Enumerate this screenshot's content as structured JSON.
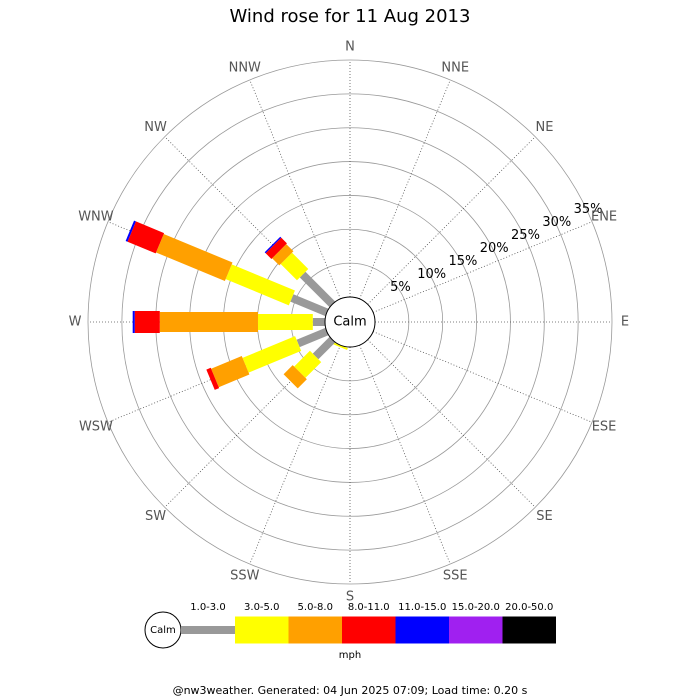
{
  "chart_data": {
    "type": "windrose",
    "title": "Wind rose for 11 Aug 2013",
    "categories": [
      "N",
      "NNE",
      "NE",
      "ENE",
      "E",
      "ESE",
      "SE",
      "SSE",
      "S",
      "SSW",
      "SW",
      "WSW",
      "W",
      "WNW",
      "NW",
      "NNW"
    ],
    "calm_label": "Calm",
    "rlim": [
      0,
      35
    ],
    "rticks": [
      {
        "value": 5,
        "label": "5%"
      },
      {
        "value": 10,
        "label": "10%"
      },
      {
        "value": 15,
        "label": "15%"
      },
      {
        "value": 20,
        "label": "20%"
      },
      {
        "value": 25,
        "label": "25%"
      },
      {
        "value": 30,
        "label": "30%"
      },
      {
        "value": 35,
        "label": "35%"
      }
    ],
    "series": [
      {
        "name": "1.0-3.0",
        "color": "#999999",
        "values": [
          0,
          0,
          0,
          0,
          0,
          0,
          0,
          0,
          0,
          0,
          3.5,
          4.6,
          1.8,
          5.6,
          6.2,
          0
        ]
      },
      {
        "name": "3.0-5.0",
        "color": "#ffff00",
        "values": [
          0,
          0,
          0,
          0,
          0,
          0,
          0,
          0,
          0,
          0.3,
          3.3,
          8.4,
          8.1,
          10.1,
          3.4,
          0
        ]
      },
      {
        "name": "5.0-8.0",
        "color": "#ffa000",
        "values": [
          0,
          0,
          0,
          0,
          0,
          0,
          0,
          0,
          0,
          0,
          1.9,
          4.9,
          14.5,
          11.0,
          1.5,
          0
        ]
      },
      {
        "name": "8.0-11.0",
        "color": "#ff0000",
        "values": [
          0,
          0,
          0,
          0,
          0,
          0,
          0,
          0,
          0,
          0,
          0,
          0.7,
          3.7,
          4.5,
          1.2,
          0
        ]
      },
      {
        "name": "11.0-15.0",
        "color": "#0000ff",
        "values": [
          0,
          0,
          0,
          0,
          0,
          0,
          0,
          0,
          0,
          0,
          0,
          0,
          0.3,
          0.3,
          0.2,
          0
        ]
      },
      {
        "name": "15.0-20.0",
        "color": "#a020f0",
        "values": [
          0,
          0,
          0,
          0,
          0,
          0,
          0,
          0,
          0,
          0,
          0,
          0,
          0,
          0,
          0,
          0
        ]
      },
      {
        "name": "20.0-50.0",
        "color": "#000000",
        "values": [
          0,
          0,
          0,
          0,
          0,
          0,
          0,
          0,
          0,
          0,
          0,
          0,
          0,
          0,
          0,
          0
        ]
      }
    ],
    "unit": "mph",
    "footer": "@nw3weather. Generated: 04 Jun 2025 07:09; Load time: 0.20 s"
  }
}
